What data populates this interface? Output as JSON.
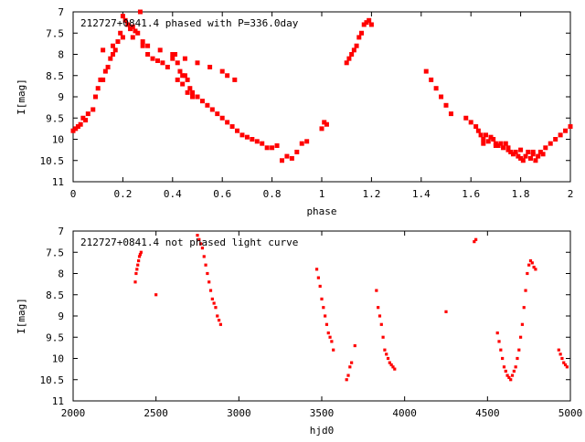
{
  "chart_data": [
    {
      "type": "scatter",
      "title": "212727+0841.4 phased with P=336.0day",
      "xlabel": "phase",
      "ylabel": "I[mag]",
      "xlim": [
        0,
        2
      ],
      "ylim": [
        11,
        7
      ],
      "y_inverted": true,
      "xticks": [
        "0",
        "0.2",
        "0.4",
        "0.6",
        "0.8",
        "1",
        "1.2",
        "1.4",
        "1.6",
        "1.8",
        "2"
      ],
      "yticks": [
        "7",
        "7.5",
        "8",
        "8.5",
        "9",
        "9.5",
        "10",
        "10.5",
        "11"
      ],
      "series": [
        {
          "color": "#ff0000",
          "x": [
            0.0,
            0.01,
            0.02,
            0.03,
            0.04,
            0.05,
            0.06,
            0.08,
            0.09,
            0.1,
            0.11,
            0.12,
            0.13,
            0.14,
            0.15,
            0.16,
            0.17,
            0.18,
            0.19,
            0.2,
            0.21,
            0.22,
            0.23,
            0.24,
            0.25,
            0.26,
            0.27,
            0.28,
            0.3,
            0.32,
            0.34,
            0.36,
            0.38,
            0.4,
            0.41,
            0.42,
            0.43,
            0.44,
            0.45,
            0.46,
            0.47,
            0.48,
            0.5,
            0.52,
            0.54,
            0.56,
            0.58,
            0.6,
            0.62,
            0.64,
            0.66,
            0.68,
            0.7,
            0.72,
            0.74,
            0.76,
            0.78,
            0.8,
            0.82,
            0.84,
            0.86,
            0.88,
            0.9,
            0.92,
            0.94,
            1.0,
            1.01,
            1.02,
            1.1,
            1.11,
            1.12,
            1.13,
            1.14,
            1.15,
            1.16,
            1.17,
            1.18,
            1.19,
            1.2,
            1.42,
            1.44,
            1.46,
            1.48,
            1.5,
            1.52,
            1.58,
            1.6,
            1.62,
            1.63,
            1.64,
            1.65,
            1.66,
            1.67,
            1.68,
            1.69,
            1.7,
            1.71,
            1.72,
            1.73,
            1.74,
            1.75,
            1.76,
            1.77,
            1.78,
            1.79,
            1.8,
            1.81,
            1.82,
            1.83,
            1.84,
            1.85,
            1.86,
            1.87,
            1.88,
            1.89,
            1.9,
            1.92,
            1.94,
            1.96,
            1.98,
            2.0,
            0.3,
            0.35,
            0.4,
            0.45,
            0.5,
            0.55,
            0.6,
            0.62,
            0.65,
            0.2,
            0.24,
            0.28,
            0.12,
            0.16,
            0.42,
            0.44,
            0.46,
            0.48,
            1.65,
            1.7,
            1.75,
            1.8,
            1.85
          ],
          "y": [
            9.8,
            9.75,
            9.7,
            9.65,
            9.5,
            9.55,
            9.4,
            9.3,
            9.0,
            8.8,
            8.6,
            8.6,
            8.4,
            8.3,
            8.1,
            8.0,
            7.9,
            7.7,
            7.5,
            7.1,
            7.2,
            7.3,
            7.4,
            7.35,
            7.45,
            7.5,
            7.0,
            7.7,
            8.0,
            8.1,
            8.15,
            8.2,
            8.3,
            8.1,
            8.0,
            8.2,
            8.4,
            8.5,
            8.5,
            8.6,
            8.8,
            8.9,
            9.0,
            9.1,
            9.2,
            9.3,
            9.4,
            9.5,
            9.6,
            9.7,
            9.8,
            9.9,
            9.95,
            10.0,
            10.05,
            10.1,
            10.2,
            10.2,
            10.15,
            10.5,
            10.4,
            10.45,
            10.3,
            10.1,
            10.05,
            9.75,
            9.6,
            9.65,
            8.2,
            8.1,
            8.0,
            7.9,
            7.8,
            7.6,
            7.5,
            7.3,
            7.25,
            7.2,
            7.3,
            8.4,
            8.6,
            8.8,
            9.0,
            9.2,
            9.4,
            9.5,
            9.6,
            9.7,
            9.8,
            9.9,
            10.0,
            9.9,
            10.05,
            9.95,
            10.0,
            10.1,
            10.15,
            10.1,
            10.2,
            10.1,
            10.25,
            10.3,
            10.35,
            10.3,
            10.4,
            10.45,
            10.5,
            10.4,
            10.3,
            10.45,
            10.35,
            10.5,
            10.4,
            10.3,
            10.35,
            10.2,
            10.1,
            10.0,
            9.9,
            9.8,
            9.7,
            7.8,
            7.9,
            8.0,
            8.1,
            8.2,
            8.3,
            8.4,
            8.5,
            8.6,
            7.6,
            7.6,
            7.8,
            7.9,
            7.8,
            8.6,
            8.7,
            8.9,
            9.0,
            10.1,
            10.15,
            10.2,
            10.25,
            10.3
          ]
        }
      ]
    },
    {
      "type": "scatter",
      "title": "212727+0841.4 not phased light curve",
      "xlabel": "hjd0",
      "ylabel": "I[mag]",
      "xlim": [
        2000,
        5000
      ],
      "ylim": [
        11,
        7
      ],
      "y_inverted": true,
      "xticks": [
        "2000",
        "2500",
        "3000",
        "3500",
        "4000",
        "4500",
        "5000"
      ],
      "yticks": [
        "7",
        "7.5",
        "8",
        "8.5",
        "9",
        "9.5",
        "10",
        "10.5",
        "11"
      ],
      "series": [
        {
          "color": "#ff0000",
          "x": [
            2375,
            2380,
            2385,
            2390,
            2395,
            2400,
            2405,
            2410,
            2500,
            2750,
            2760,
            2770,
            2780,
            2790,
            2800,
            2810,
            2820,
            2830,
            2840,
            2850,
            2860,
            2870,
            2880,
            2890,
            3470,
            3480,
            3490,
            3500,
            3510,
            3520,
            3530,
            3540,
            3550,
            3560,
            3570,
            3650,
            3660,
            3670,
            3680,
            3700,
            3830,
            3840,
            3850,
            3860,
            3870,
            3880,
            3890,
            3900,
            3910,
            3920,
            3930,
            3940,
            4250,
            4420,
            4430,
            4560,
            4570,
            4580,
            4590,
            4600,
            4610,
            4620,
            4630,
            4640,
            4650,
            4660,
            4670,
            4680,
            4690,
            4700,
            4710,
            4720,
            4730,
            4740,
            4750,
            4760,
            4770,
            4780,
            4790,
            4930,
            4940,
            4950,
            4960,
            4970,
            4980
          ],
          "y": [
            8.2,
            8.0,
            7.9,
            7.8,
            7.7,
            7.6,
            7.55,
            7.5,
            8.5,
            7.1,
            7.2,
            7.3,
            7.4,
            7.6,
            7.8,
            8.0,
            8.2,
            8.4,
            8.6,
            8.7,
            8.8,
            9.0,
            9.1,
            9.2,
            7.9,
            8.1,
            8.3,
            8.6,
            8.8,
            9.0,
            9.2,
            9.4,
            9.5,
            9.6,
            9.8,
            10.5,
            10.4,
            10.2,
            10.1,
            9.7,
            8.4,
            8.8,
            9.0,
            9.2,
            9.5,
            9.8,
            9.9,
            10.0,
            10.1,
            10.15,
            10.2,
            10.25,
            8.9,
            7.25,
            7.2,
            9.4,
            9.6,
            9.8,
            10.0,
            10.2,
            10.3,
            10.4,
            10.45,
            10.5,
            10.4,
            10.3,
            10.2,
            10.0,
            9.8,
            9.5,
            9.2,
            8.8,
            8.4,
            8.0,
            7.8,
            7.7,
            7.75,
            7.85,
            7.9,
            9.8,
            9.9,
            10.0,
            10.1,
            10.15,
            10.2
          ]
        }
      ]
    }
  ]
}
